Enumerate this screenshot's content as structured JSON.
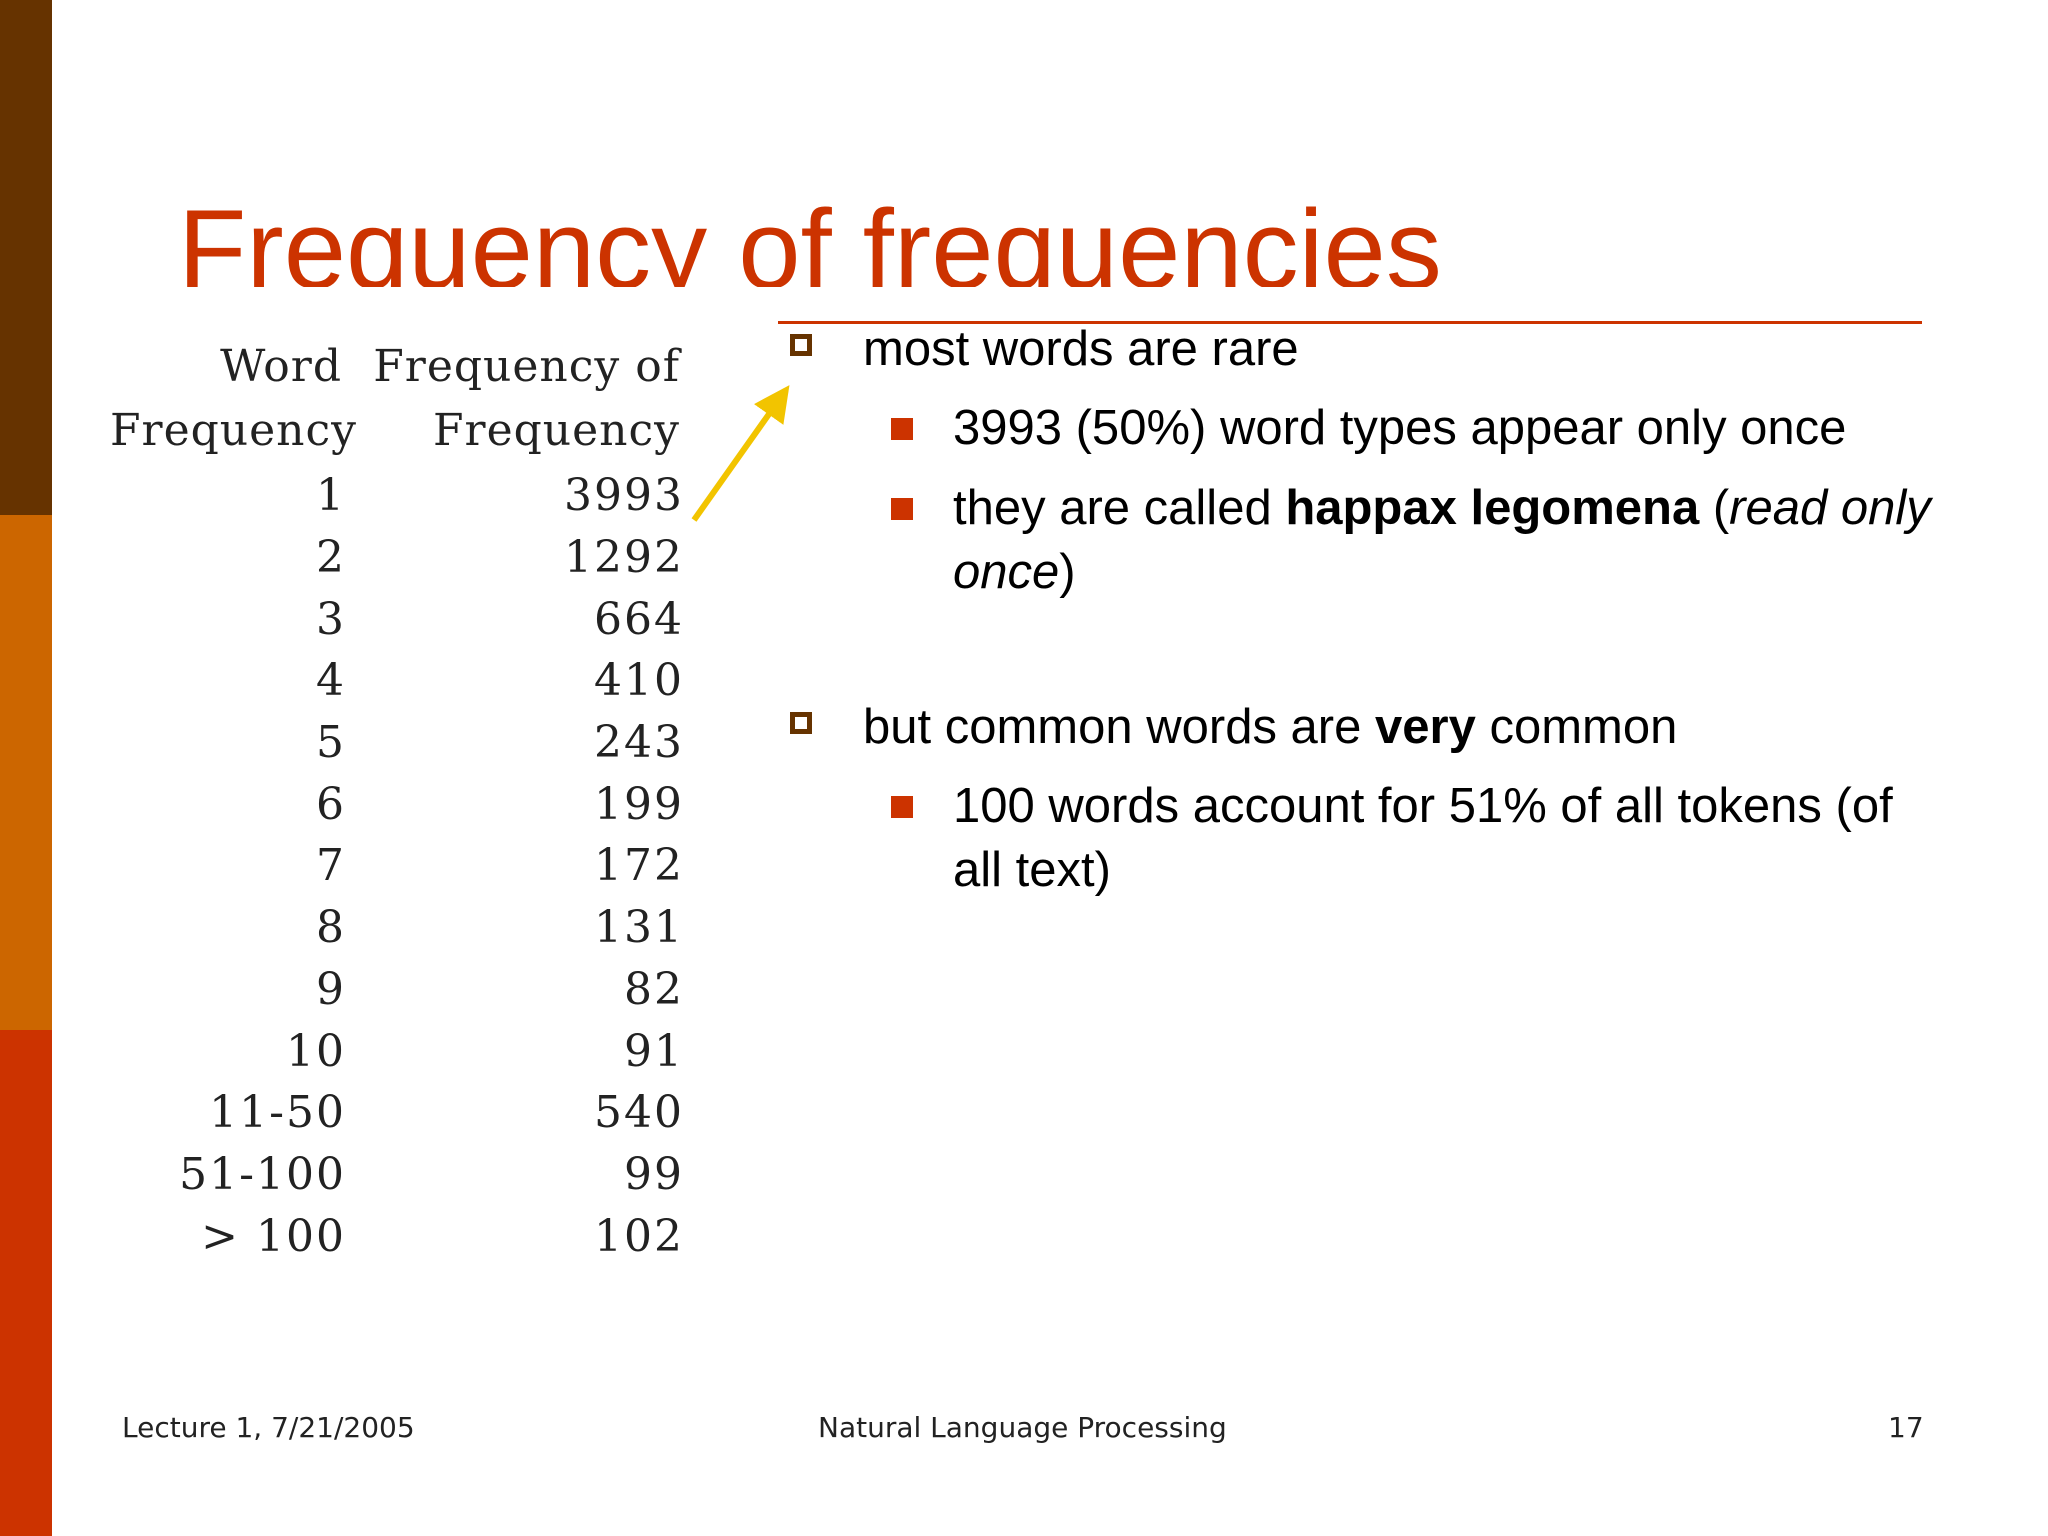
{
  "slide": {
    "title": "Frequency of frequencies",
    "table": {
      "headers": [
        "Word\nFrequency",
        "Frequency of\nFrequency"
      ],
      "rows": [
        [
          "1",
          "3993"
        ],
        [
          "2",
          "1292"
        ],
        [
          "3",
          "664"
        ],
        [
          "4",
          "410"
        ],
        [
          "5",
          "243"
        ],
        [
          "6",
          "199"
        ],
        [
          "7",
          "172"
        ],
        [
          "8",
          "131"
        ],
        [
          "9",
          "82"
        ],
        [
          "10",
          "91"
        ],
        [
          "11-50",
          "540"
        ],
        [
          "51-100",
          "99"
        ],
        [
          "> 100",
          "102"
        ]
      ]
    },
    "bullets": {
      "b1": "most words are rare",
      "b1_1": "3993 (50%) word types appear only once",
      "b1_2": {
        "pre": "they are called ",
        "bold": "happax legomena",
        "mid": " (",
        "italic": "read only once",
        "post": ")"
      },
      "b2": {
        "pre": "but common words are ",
        "bold": "very",
        "post": " common"
      },
      "b2_1": "100 words account for 51% of all tokens (of all text)"
    },
    "footer": {
      "left": "Lecture 1, 7/21/2005",
      "center": "Natural Language Processing",
      "right": "17"
    },
    "colors": {
      "title": "#cc3300",
      "bar_top": "#663300",
      "bar_mid": "#cc6600",
      "bar_bottom": "#cc3300",
      "arrow": "#f2c400"
    }
  }
}
